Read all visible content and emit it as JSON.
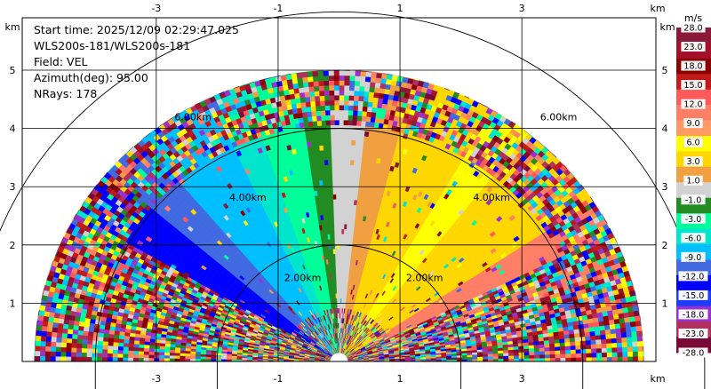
{
  "chart_data": {
    "type": "heatmap",
    "subtype": "radar-rhi",
    "title_lines": [
      "Start time: 2025/12/09 02:29:47.025",
      "WLS200s-181/WLS200s-181",
      "Field: VEL",
      "Azimuth(deg): 95.00",
      "NRays: 178"
    ],
    "units_label": "km",
    "x_ticks": [
      -3,
      -1,
      1,
      3
    ],
    "y_ticks": [
      1,
      2,
      3,
      4,
      5
    ],
    "xlim": [
      -5.2,
      5.2
    ],
    "ylim": [
      0,
      5.9
    ],
    "range_rings_km": [
      2,
      4,
      6
    ],
    "range_ring_labels": [
      "2.00km",
      "4.00km",
      "6.00km"
    ],
    "max_range_km": 5.0,
    "colorbar": {
      "label": "m/s",
      "ticks": [
        "28.0",
        "23.0",
        "18.0",
        "15.0",
        "12.0",
        "9.0",
        "6.0",
        "3.0",
        "1.0",
        "-1.0",
        "-3.0",
        "-6.0",
        "-9.0",
        "-12.0",
        "-15.0",
        "-18.0",
        "-23.0",
        "-28.0"
      ],
      "colors": [
        "#8b1a3a",
        "#a50f2a",
        "#8b0000",
        "#c11a1a",
        "#ff5a5a",
        "#ff7f66",
        "#ff9966",
        "#ffff00",
        "#ffd700",
        "#f0a040",
        "#d2d2d2",
        "#228b22",
        "#00ff99",
        "#00e5cc",
        "#00bfff",
        "#4169e1",
        "#0000ff",
        "#1e3cff",
        "#9932cc",
        "#b03060",
        "#7a0a35"
      ]
    },
    "velocity_sectors": [
      {
        "elev_from": 0,
        "elev_to": 18,
        "field": "noise"
      },
      {
        "elev_from": 18,
        "elev_to": 22,
        "field": "noise",
        "color": "#ff7f66"
      },
      {
        "elev_from": 26,
        "elev_to": 33,
        "field": "solid",
        "color": "#ff7f66"
      },
      {
        "elev_from": 33,
        "elev_to": 52,
        "field": "solid",
        "color": "#ffd700"
      },
      {
        "elev_from": 52,
        "elev_to": 60,
        "field": "solid",
        "color": "#ffff00"
      },
      {
        "elev_from": 60,
        "elev_to": 76,
        "field": "solid",
        "color": "#ffd700"
      },
      {
        "elev_from": 76,
        "elev_to": 84,
        "field": "solid",
        "color": "#f0a040"
      },
      {
        "elev_from": 84,
        "elev_to": 92,
        "field": "solid",
        "color": "#d2d2d2"
      },
      {
        "elev_from": 92,
        "elev_to": 98,
        "field": "solid",
        "color": "#228b22"
      },
      {
        "elev_from": 98,
        "elev_to": 108,
        "field": "solid",
        "color": "#00ff99"
      },
      {
        "elev_from": 108,
        "elev_to": 115,
        "field": "solid",
        "color": "#00e5cc"
      },
      {
        "elev_from": 115,
        "elev_to": 130,
        "field": "solid",
        "color": "#00bfff"
      },
      {
        "elev_from": 130,
        "elev_to": 140,
        "field": "solid",
        "color": "#4169e1"
      },
      {
        "elev_from": 140,
        "elev_to": 150,
        "field": "solid",
        "color": "#0000ff"
      },
      {
        "elev_from": 150,
        "elev_to": 180,
        "field": "noise"
      }
    ]
  }
}
